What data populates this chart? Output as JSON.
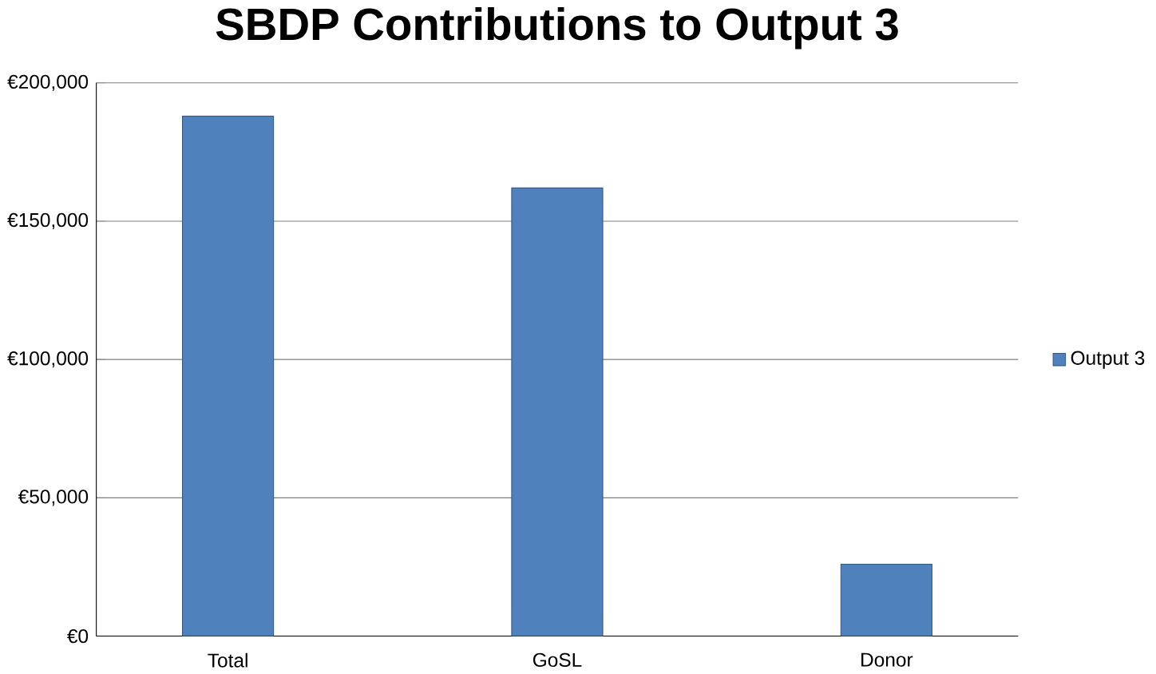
{
  "chart_data": {
    "type": "bar",
    "title": "SBDP Contributions to Output 3",
    "categories": [
      "Total",
      "GoSL",
      "Donor"
    ],
    "series": [
      {
        "name": "Output 3",
        "color": "#4f81bd",
        "values": [
          188000,
          162000,
          26000
        ]
      }
    ],
    "ylim": [
      0,
      200000
    ],
    "yticks": [
      {
        "value": 0,
        "label": "€0"
      },
      {
        "value": 50000,
        "label": "€50,000"
      },
      {
        "value": 100000,
        "label": "€100,000"
      },
      {
        "value": 150000,
        "label": "€150,000"
      },
      {
        "value": 200000,
        "label": "€200,000"
      }
    ],
    "grid": "y",
    "legend": "right"
  }
}
